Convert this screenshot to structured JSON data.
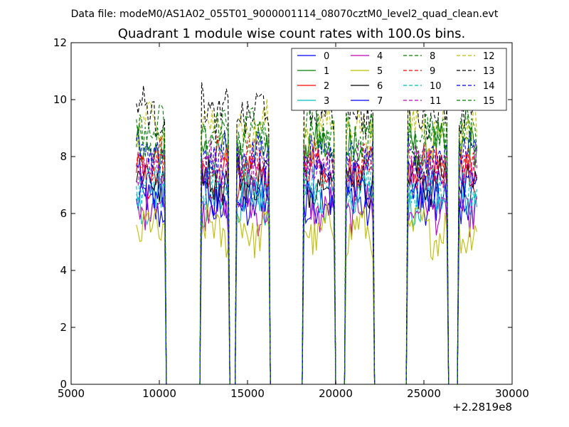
{
  "figure": {
    "suptitle": "Data file: modeM0/AS1A02_055T01_9000001114_08070cztM0_level2_quad_clean.evt"
  },
  "chart_data": {
    "type": "line",
    "title": "Quadrant 1 module wise count rates with 100.0s bins.",
    "xlabel": "",
    "ylabel": "",
    "xlim": [
      5000,
      30000
    ],
    "ylim": [
      0,
      12
    ],
    "x_offset_label": "+2.2819e8",
    "x_ticks": [
      5000,
      10000,
      15000,
      20000,
      25000,
      30000
    ],
    "x_tick_labels": [
      "5000",
      "10000",
      "15000",
      "20000",
      "25000",
      "30000"
    ],
    "y_ticks": [
      0,
      2,
      4,
      6,
      8,
      10,
      12
    ],
    "y_tick_labels": [
      "0",
      "2",
      "4",
      "6",
      "8",
      "10",
      "12"
    ],
    "grid": false,
    "legend": {
      "placement": "top-right",
      "columns": 4
    },
    "active_segments": [
      [
        8700,
        10300
      ],
      [
        12400,
        13900
      ],
      [
        14400,
        16200
      ],
      [
        18200,
        19900
      ],
      [
        20600,
        22100
      ],
      [
        24100,
        26300
      ],
      [
        27000,
        28000
      ]
    ],
    "inactive_value": 0,
    "series": [
      {
        "name": "0",
        "color": "#0000ff",
        "dash": "solid",
        "level": 6.3
      },
      {
        "name": "1",
        "color": "#008000",
        "dash": "solid",
        "level": 8.2
      },
      {
        "name": "2",
        "color": "#ff0000",
        "dash": "solid",
        "level": 7.4
      },
      {
        "name": "3",
        "color": "#00bfbf",
        "dash": "solid",
        "level": 6.5
      },
      {
        "name": "4",
        "color": "#bf00bf",
        "dash": "solid",
        "level": 6.2
      },
      {
        "name": "5",
        "color": "#bfbf00",
        "dash": "solid",
        "level": 5.4
      },
      {
        "name": "6",
        "color": "#000000",
        "dash": "solid",
        "level": 7.2
      },
      {
        "name": "7",
        "color": "#0000ff",
        "dash": "solid",
        "level": 6.9
      },
      {
        "name": "8",
        "color": "#008000",
        "dash": "dashed",
        "level": 8.6
      },
      {
        "name": "9",
        "color": "#ff0000",
        "dash": "dashed",
        "level": 7.8
      },
      {
        "name": "10",
        "color": "#00bfbf",
        "dash": "dashed",
        "level": 7.0
      },
      {
        "name": "11",
        "color": "#bf00bf",
        "dash": "dashed",
        "level": 7.6
      },
      {
        "name": "12",
        "color": "#bfbf00",
        "dash": "dashed",
        "level": 9.0
      },
      {
        "name": "13",
        "color": "#000000",
        "dash": "dashed",
        "level": 9.6
      },
      {
        "name": "14",
        "color": "#0000ff",
        "dash": "dashed",
        "level": 8.0
      },
      {
        "name": "15",
        "color": "#008000",
        "dash": "dashed",
        "level": 8.9
      }
    ]
  }
}
